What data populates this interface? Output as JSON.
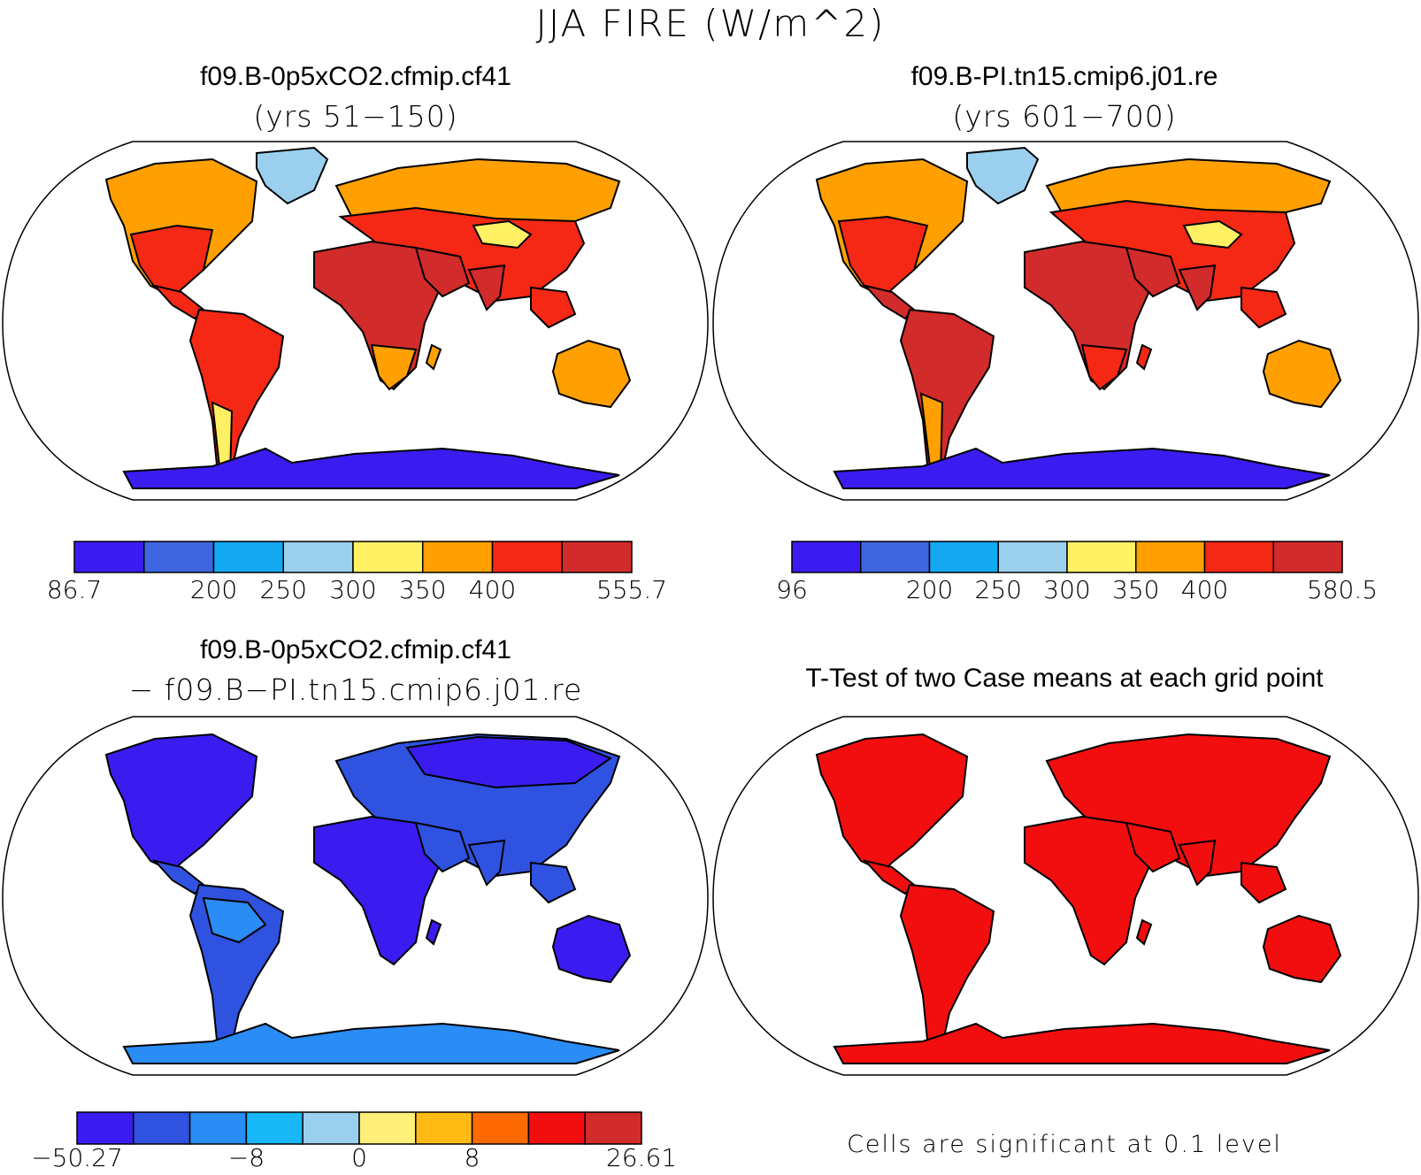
{
  "figure_title": "JJA FIRE (W/m^2)",
  "panels": [
    {
      "id": "case1",
      "title": "f09.B-0p5xCO2.cfmip.cf41",
      "subtitle": "(yrs 51−150)",
      "colors": [
        "#3a1cf0",
        "#3e66e0",
        "#13a8f0",
        "#9ad0ee",
        "#fff064",
        "#ffa000",
        "#f42814",
        "#d22b2b"
      ],
      "labels": [
        "86.7",
        "200",
        "250",
        "300",
        "350",
        "400",
        "555.7"
      ],
      "label_slots": [
        0,
        2,
        3,
        4,
        5,
        6,
        8
      ]
    },
    {
      "id": "case2",
      "title": "f09.B-PI.tn15.cmip6.j01.re",
      "subtitle": "(yrs 601−700)",
      "colors": [
        "#3a1cf0",
        "#3e66e0",
        "#13a8f0",
        "#9ad0ee",
        "#fff064",
        "#ffa000",
        "#f42814",
        "#d22b2b"
      ],
      "labels": [
        "96",
        "200",
        "250",
        "300",
        "350",
        "400",
        "580.5"
      ],
      "label_slots": [
        0,
        2,
        3,
        4,
        5,
        6,
        8
      ]
    },
    {
      "id": "difference",
      "title": "f09.B-0p5xCO2.cfmip.cf41",
      "subtitle": "− f09.B−PI.tn15.cmip6.j01.re",
      "colors": [
        "#3a1cf0",
        "#2f52e0",
        "#2a8cf5",
        "#17b8f5",
        "#9ad0ee",
        "#fff07a",
        "#ffba14",
        "#ff6a00",
        "#f20e0e",
        "#d22b2b"
      ],
      "labels": [
        "−50.27",
        "−8",
        "0",
        "8",
        "26.61"
      ],
      "label_slots": [
        0,
        3,
        5,
        7,
        10
      ]
    },
    {
      "id": "ttest",
      "title": "T-Test of two Case means at each grid point",
      "note": "Cells are significant at 0.1 level",
      "colors": [
        "#f20e0e"
      ]
    }
  ]
}
